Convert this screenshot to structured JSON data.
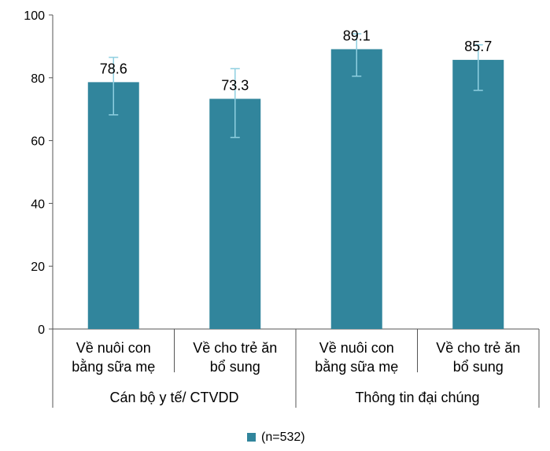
{
  "chart_data": {
    "type": "bar",
    "categories": [
      "Về nuôi con bằng sữa mẹ",
      "Về cho trẻ ăn bổ sung",
      "Về nuôi con bằng sữa mẹ",
      "Về cho trẻ ăn bổ sung"
    ],
    "category_lines": [
      [
        "Về nuôi con",
        "bằng sữa mẹ"
      ],
      [
        "Về cho trẻ ăn",
        "bổ sung"
      ],
      [
        "Về nuôi con",
        "bằng sữa mẹ"
      ],
      [
        "Về cho trẻ ăn",
        "bổ sung"
      ]
    ],
    "groups": [
      {
        "label": "Cán bộ y tế/ CTVDD",
        "span": [
          0,
          1
        ]
      },
      {
        "label": "Thông tin đại chúng",
        "span": [
          2,
          3
        ]
      }
    ],
    "series": [
      {
        "name": "(n=532)",
        "values": [
          78.6,
          73.3,
          89.1,
          85.7
        ],
        "error_low": [
          68.2,
          61.0,
          80.5,
          76.0
        ],
        "error_high": [
          86.5,
          82.9,
          94.0,
          90.5
        ]
      }
    ],
    "ylim": [
      0,
      100
    ],
    "yticks": [
      0,
      20,
      40,
      60,
      80,
      100
    ],
    "bar_color": "#31859c",
    "error_color": "#8ecfe0",
    "grid": false,
    "legend_position": "bottom"
  }
}
